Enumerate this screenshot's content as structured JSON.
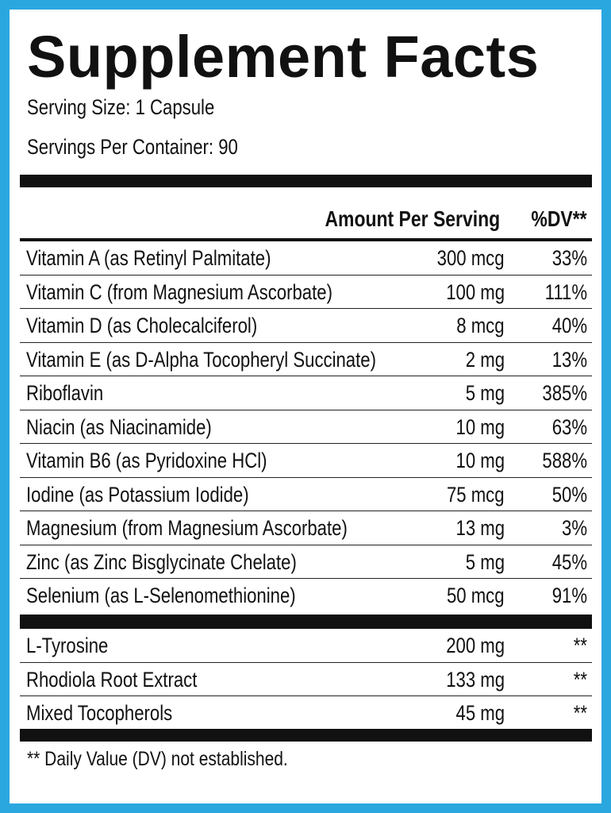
{
  "title": "Supplement Facts",
  "serving_size": "Serving Size: 1 Capsule",
  "servings_per_container": "Servings Per Container: 90",
  "header": {
    "amount": "Amount Per Serving",
    "dv": "%DV**"
  },
  "nutrients": [
    {
      "name": "Vitamin A (as Retinyl Palmitate)",
      "amount": "300 mcg",
      "dv": "33%"
    },
    {
      "name": "Vitamin C (from Magnesium Ascorbate)",
      "amount": "100 mg",
      "dv": "111%"
    },
    {
      "name": "Vitamin D (as Cholecalciferol)",
      "amount": "8 mcg",
      "dv": "40%"
    },
    {
      "name": "Vitamin E (as D-Alpha Tocopheryl Succinate)",
      "amount": "2 mg",
      "dv": "13%"
    },
    {
      "name": "Riboflavin",
      "amount": "5 mg",
      "dv": "385%"
    },
    {
      "name": "Niacin (as Niacinamide)",
      "amount": "10 mg",
      "dv": "63%"
    },
    {
      "name": "Vitamin B6 (as Pyridoxine HCl)",
      "amount": "10 mg",
      "dv": "588%"
    },
    {
      "name": "Iodine (as Potassium Iodide)",
      "amount": "75 mcg",
      "dv": "50%"
    },
    {
      "name": "Magnesium (from Magnesium Ascorbate)",
      "amount": "13 mg",
      "dv": "3%"
    },
    {
      "name": "Zinc (as Zinc Bisglycinate Chelate)",
      "amount": "5 mg",
      "dv": "45%"
    },
    {
      "name": "Selenium (as L-Selenomethionine)",
      "amount": "50 mcg",
      "dv": "91%"
    }
  ],
  "other_ingredients": [
    {
      "name": "L-Tyrosine",
      "amount": "200 mg",
      "dv": "**"
    },
    {
      "name": "Rhodiola Root Extract",
      "amount": "133 mg",
      "dv": "**"
    },
    {
      "name": "Mixed Tocopherols",
      "amount": "45 mg",
      "dv": "**"
    }
  ],
  "footnote": "** Daily Value (DV) not established.",
  "colors": {
    "border": "#2aa7df",
    "ink": "#111111",
    "background": "#ffffff"
  }
}
